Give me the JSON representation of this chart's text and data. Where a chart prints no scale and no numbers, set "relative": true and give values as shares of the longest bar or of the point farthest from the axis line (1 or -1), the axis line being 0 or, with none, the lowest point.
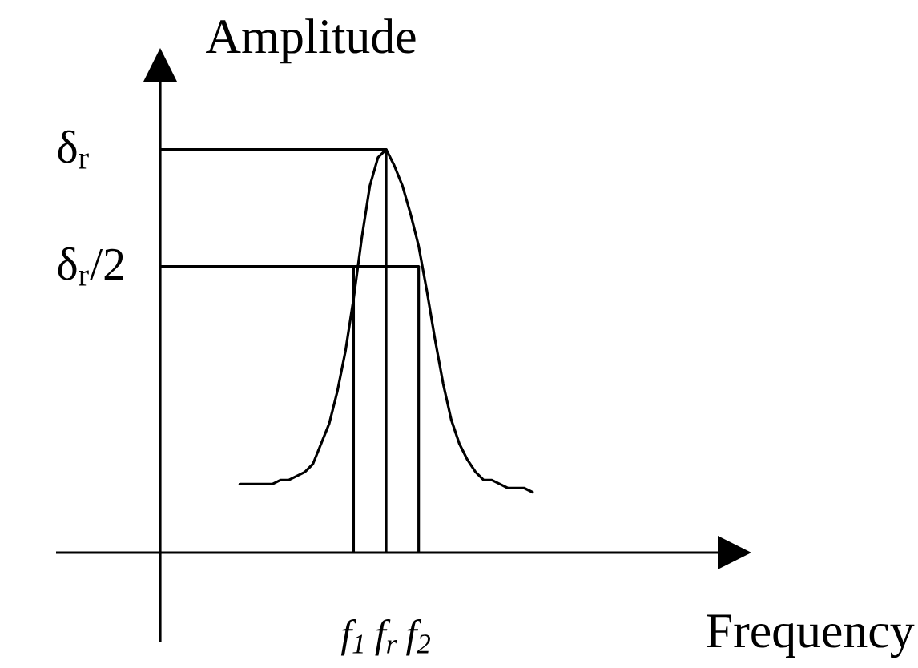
{
  "chart_data": {
    "type": "line",
    "xlabel": "Frequency",
    "ylabel": "Amplitude",
    "relative": true,
    "categories": [
      null,
      null,
      null,
      null,
      null,
      null,
      null,
      null,
      null,
      null,
      null,
      null,
      null,
      null,
      "f$_{1}$",
      null,
      null,
      null,
      "f$_{r}$",
      null,
      null,
      null,
      "f$_{2}$",
      null,
      null,
      null,
      null,
      null,
      null,
      null,
      null,
      null,
      null,
      null,
      null,
      null,
      null
    ],
    "series": [
      {
        "color": "#000000",
        "values": [
          0.17,
          0.17,
          0.17,
          0.17,
          0.17,
          0.18,
          0.18,
          0.19,
          0.2,
          0.22,
          0.27,
          0.32,
          0.4,
          0.5,
          0.63,
          0.78,
          0.91,
          0.98,
          1,
          0.96,
          0.91,
          0.84,
          0.76,
          0.65,
          0.53,
          0.42,
          0.33,
          0.27,
          0.23,
          0.2,
          0.18,
          0.18,
          0.17,
          0.16,
          0.16,
          0.16,
          0.15
        ]
      }
    ],
    "ref_lines": [
      {
        "axis": "y",
        "value": 1,
        "label": "δ$_{r}$"
      },
      {
        "axis": "y",
        "value": 0.71,
        "label": "δ$_{r}$/2"
      },
      {
        "axis": "x",
        "value": "f$_{1}$"
      },
      {
        "axis": "x",
        "value": "f$_{r}$"
      },
      {
        "axis": "x",
        "value": "f$_{2}$"
      }
    ]
  }
}
